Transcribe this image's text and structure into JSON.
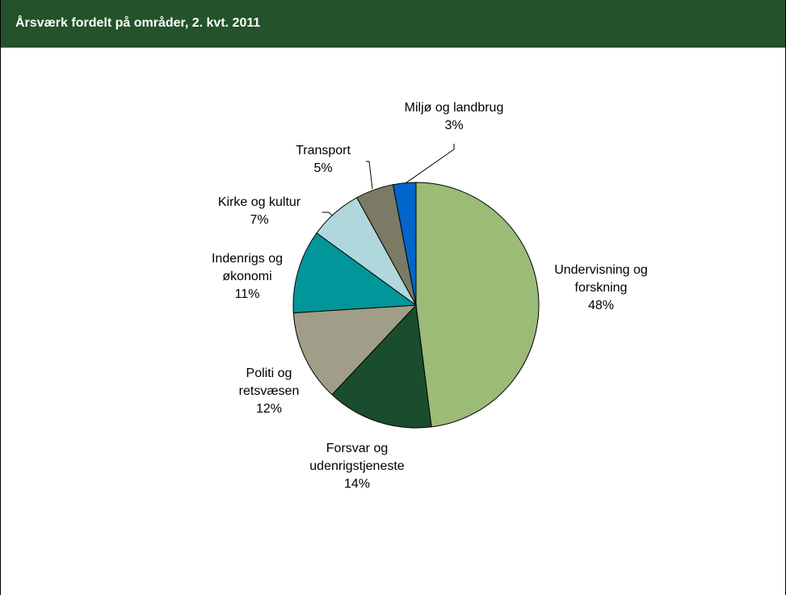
{
  "chart_data": {
    "type": "pie",
    "title": "Årsværk fordelt på områder, 2. kvt. 2011",
    "categories": [
      "Undervisning og forskning",
      "Forsvar og udenrigstjeneste",
      "Politi og retsvæsen",
      "Indenrigs og økonomi",
      "Kirke og kultur",
      "Transport",
      "Miljø og landbrug"
    ],
    "values": [
      48,
      14,
      12,
      11,
      7,
      5,
      3
    ],
    "value_labels": [
      "48%",
      "14%",
      "12%",
      "11%",
      "7%",
      "5%",
      "3%"
    ],
    "colors": [
      "#9bbb77",
      "#1a4d2e",
      "#a09e88",
      "#00969a",
      "#b0d8dc",
      "#7b7a65",
      "#0066cc"
    ]
  }
}
